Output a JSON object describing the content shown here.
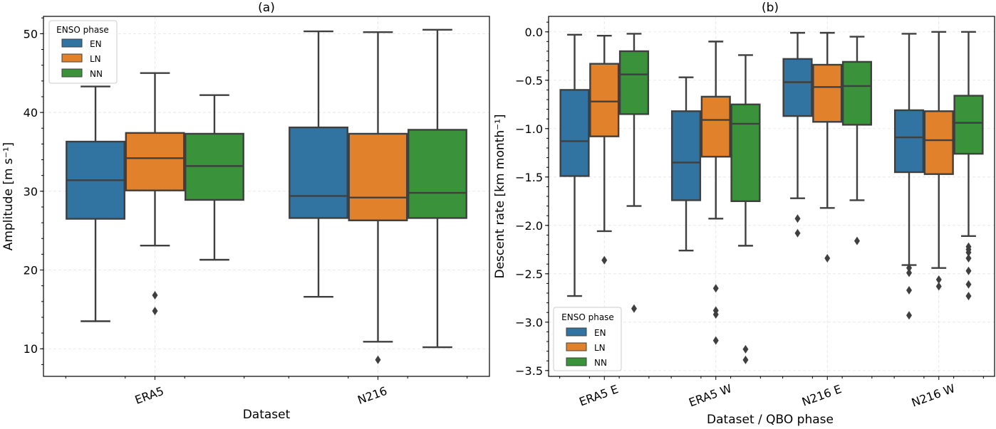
{
  "chart_data": [
    {
      "type": "box",
      "title": "(a)",
      "xlabel": "Dataset",
      "ylabel": "Amplitude [m s⁻¹]",
      "ylim": [
        6.5,
        52.2
      ],
      "yticks": [
        10,
        20,
        30,
        40,
        50
      ],
      "ytick_labels": [
        "10",
        "20",
        "30",
        "40",
        "50"
      ],
      "grid": true,
      "categories": [
        "ERA5",
        "N216"
      ],
      "legend": {
        "title": "ENSO phase",
        "placement": "top-left",
        "entries": [
          "EN",
          "LN",
          "NN"
        ]
      },
      "series": [
        {
          "name": "EN",
          "color": "#3274a1",
          "boxes": [
            {
              "whislo": 13.5,
              "q1": 26.5,
              "med": 31.4,
              "q3": 36.3,
              "whishi": 43.3,
              "fliers": []
            },
            {
              "whislo": 16.6,
              "q1": 26.6,
              "med": 29.4,
              "q3": 38.1,
              "whishi": 50.3,
              "fliers": []
            }
          ]
        },
        {
          "name": "LN",
          "color": "#e1812c",
          "boxes": [
            {
              "whislo": 23.1,
              "q1": 30.1,
              "med": 34.2,
              "q3": 37.4,
              "whishi": 45.0,
              "fliers": [
                16.8,
                14.8
              ]
            },
            {
              "whislo": 10.9,
              "q1": 26.3,
              "med": 29.2,
              "q3": 37.3,
              "whishi": 50.2,
              "fliers": [
                8.6
              ]
            }
          ]
        },
        {
          "name": "NN",
          "color": "#3a923a",
          "boxes": [
            {
              "whislo": 21.3,
              "q1": 28.9,
              "med": 33.2,
              "q3": 37.3,
              "whishi": 42.2,
              "fliers": []
            },
            {
              "whislo": 10.2,
              "q1": 26.6,
              "med": 29.8,
              "q3": 37.8,
              "whishi": 50.5,
              "fliers": []
            }
          ]
        }
      ]
    },
    {
      "type": "box",
      "title": "(b)",
      "xlabel": "Dataset / QBO phase",
      "ylabel": "Descent rate [km month⁻¹]",
      "ylim": [
        -3.56,
        0.16
      ],
      "yticks": [
        0.0,
        -0.5,
        -1.0,
        -1.5,
        -2.0,
        -2.5,
        -3.0,
        -3.5
      ],
      "ytick_labels": [
        "0.0",
        "−0.5",
        "−1.0",
        "−1.5",
        "−2.0",
        "−2.5",
        "−3.0",
        "−3.5"
      ],
      "grid": true,
      "categories": [
        "ERA5 E",
        "ERA5 W",
        "N216 E",
        "N216 W"
      ],
      "legend": {
        "title": "ENSO phase",
        "placement": "bottom-left",
        "entries": [
          "EN",
          "LN",
          "NN"
        ]
      },
      "series": [
        {
          "name": "EN",
          "color": "#3274a1",
          "boxes": [
            {
              "whislo": -2.73,
              "q1": -1.49,
              "med": -1.13,
              "q3": -0.6,
              "whishi": -0.03,
              "fliers": []
            },
            {
              "whislo": -2.26,
              "q1": -1.74,
              "med": -1.35,
              "q3": -0.82,
              "whishi": -0.47,
              "fliers": []
            },
            {
              "whislo": -1.72,
              "q1": -0.87,
              "med": -0.52,
              "q3": -0.28,
              "whishi": -0.01,
              "fliers": [
                -1.93,
                -2.08
              ]
            },
            {
              "whislo": -2.41,
              "q1": -1.45,
              "med": -1.09,
              "q3": -0.81,
              "whishi": -0.02,
              "fliers": [
                -2.44,
                -2.49,
                -2.67,
                -2.93
              ]
            }
          ]
        },
        {
          "name": "LN",
          "color": "#e1812c",
          "boxes": [
            {
              "whislo": -2.06,
              "q1": -1.08,
              "med": -0.72,
              "q3": -0.33,
              "whishi": -0.04,
              "fliers": [
                -2.36
              ]
            },
            {
              "whislo": -1.93,
              "q1": -1.29,
              "med": -0.91,
              "q3": -0.67,
              "whishi": -0.1,
              "fliers": [
                -2.65,
                -2.88,
                -2.92,
                -3.19
              ]
            },
            {
              "whislo": -1.82,
              "q1": -0.93,
              "med": -0.57,
              "q3": -0.34,
              "whishi": -0.01,
              "fliers": [
                -2.34
              ]
            },
            {
              "whislo": -2.44,
              "q1": -1.47,
              "med": -1.12,
              "q3": -0.82,
              "whishi": 0.0,
              "fliers": [
                -2.56,
                -2.63
              ]
            }
          ]
        },
        {
          "name": "NN",
          "color": "#3a923a",
          "boxes": [
            {
              "whislo": -1.8,
              "q1": -0.85,
              "med": -0.44,
              "q3": -0.2,
              "whishi": -0.02,
              "fliers": [
                -2.86
              ]
            },
            {
              "whislo": -2.21,
              "q1": -1.75,
              "med": -0.95,
              "q3": -0.75,
              "whishi": -0.24,
              "fliers": [
                -3.28,
                -3.39
              ]
            },
            {
              "whislo": -1.74,
              "q1": -0.96,
              "med": -0.56,
              "q3": -0.31,
              "whishi": -0.05,
              "fliers": [
                -2.16
              ]
            },
            {
              "whislo": -2.11,
              "q1": -1.26,
              "med": -0.94,
              "q3": -0.66,
              "whishi": 0.0,
              "fliers": [
                -2.22,
                -2.25,
                -2.28,
                -2.34,
                -2.47,
                -2.61,
                -2.73
              ]
            }
          ]
        }
      ]
    }
  ]
}
